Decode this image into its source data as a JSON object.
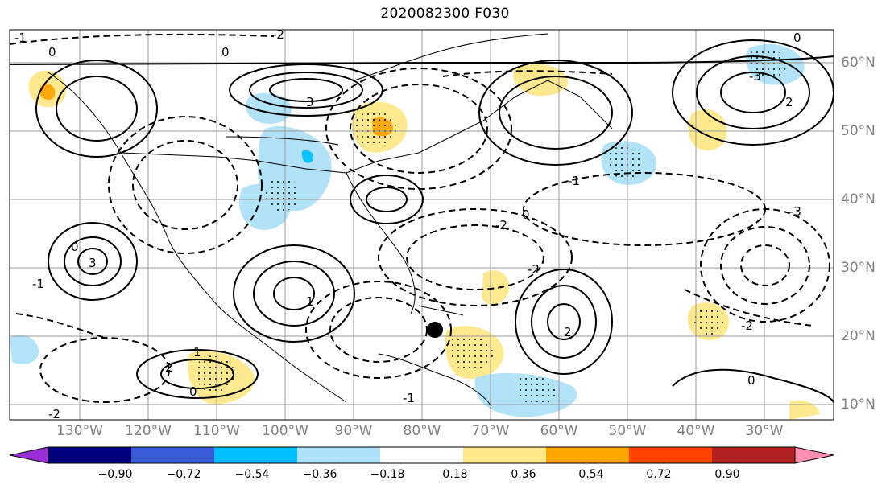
{
  "title": "2020082300 F030",
  "lon_labels": [
    "130°W",
    "120°W",
    "110°W",
    "100°W",
    "90°W",
    "80°W",
    "70°W",
    "60°W",
    "50°W",
    "40°W",
    "30°W"
  ],
  "lat_labels": [
    "60°N",
    "50°N",
    "40°N",
    "30°N",
    "20°N",
    "10°N"
  ],
  "colorbar": {
    "ticks": [
      "−0.90",
      "−0.72",
      "−0.54",
      "−0.36",
      "−0.18",
      "0.18",
      "0.36",
      "0.54",
      "0.72",
      "0.90"
    ],
    "colors": [
      "#9b30d9",
      "#00007f",
      "#3a5bd6",
      "#00bfff",
      "#aee1f8",
      "#ffffff",
      "#ffe88a",
      "#ffa500",
      "#ff4500",
      "#b22222",
      "#ff8fb0"
    ]
  },
  "contour_labels": [
    "0",
    "0",
    "0",
    "0",
    "-1",
    "-1",
    "-1",
    "-2",
    "-2",
    "-2",
    "-2",
    "-2",
    "-3",
    "-3",
    "-1",
    "1",
    "1",
    "2",
    "2",
    "2",
    "3",
    "3",
    "0",
    "0",
    "0"
  ],
  "marker": "storm-center-marker"
}
